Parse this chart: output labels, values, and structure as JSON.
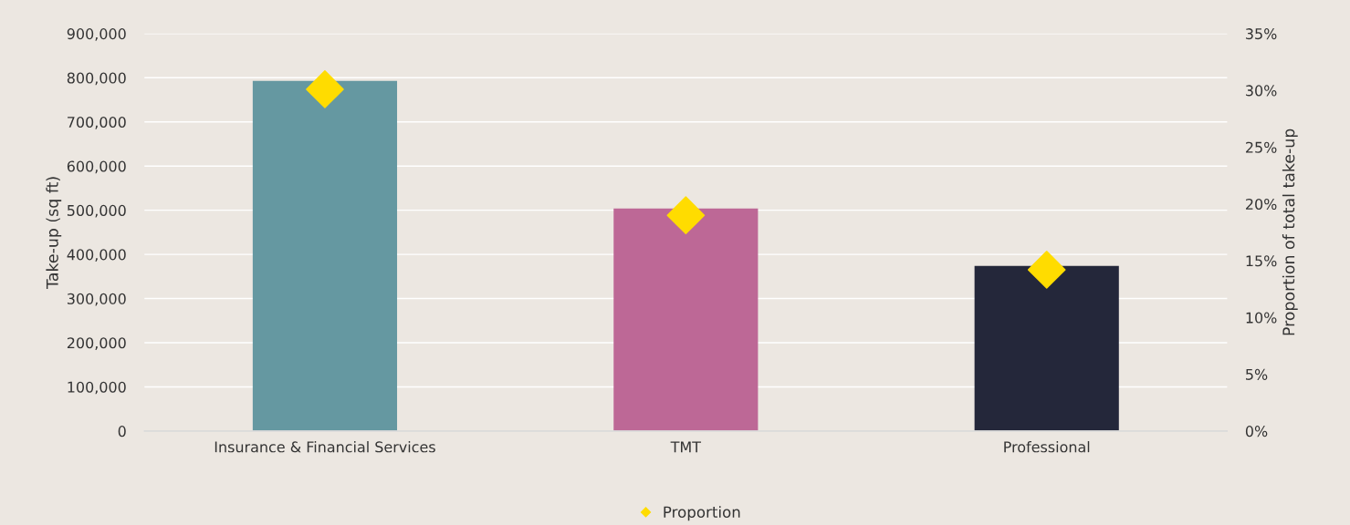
{
  "chart_data": {
    "type": "bar",
    "categories": [
      "Insurance & Financial Services",
      "TMT",
      "Professional"
    ],
    "series": [
      {
        "colors": [
          "#6598a1",
          "#bd6896",
          "#24273a"
        ],
        "values": [
          793000,
          504000,
          374000
        ]
      },
      {
        "type": "scatter",
        "axis": "y2",
        "name": "Proportion",
        "color": "#ffdc00",
        "marker": "diamond",
        "values": [
          30.1,
          19.0,
          14.2
        ]
      }
    ],
    "ylabel": "Take-up (sq ft)",
    "y2label": "Proportion of total take-up",
    "ylim": [
      0,
      900000
    ],
    "yticks": [
      {
        "value": 0,
        "label": "0"
      },
      {
        "value": 100000,
        "label": "100,000"
      },
      {
        "value": 200000,
        "label": "200,000"
      },
      {
        "value": 300000,
        "label": "300,000"
      },
      {
        "value": 400000,
        "label": "400,000"
      },
      {
        "value": 500000,
        "label": "500,000"
      },
      {
        "value": 600000,
        "label": "600,000"
      },
      {
        "value": 700000,
        "label": "700,000"
      },
      {
        "value": 800000,
        "label": "800,000"
      },
      {
        "value": 900000,
        "label": "900,000"
      }
    ],
    "y2lim": [
      0,
      35
    ],
    "y2ticks": [
      {
        "value": 0,
        "label": "0%"
      },
      {
        "value": 5,
        "label": "5%"
      },
      {
        "value": 10,
        "label": "10%"
      },
      {
        "value": 15,
        "label": "15%"
      },
      {
        "value": 20,
        "label": "20%"
      },
      {
        "value": 25,
        "label": "25%"
      },
      {
        "value": 30,
        "label": "30%"
      },
      {
        "value": 35,
        "label": "35%"
      }
    ],
    "grid": "y",
    "legend": "bottom"
  }
}
